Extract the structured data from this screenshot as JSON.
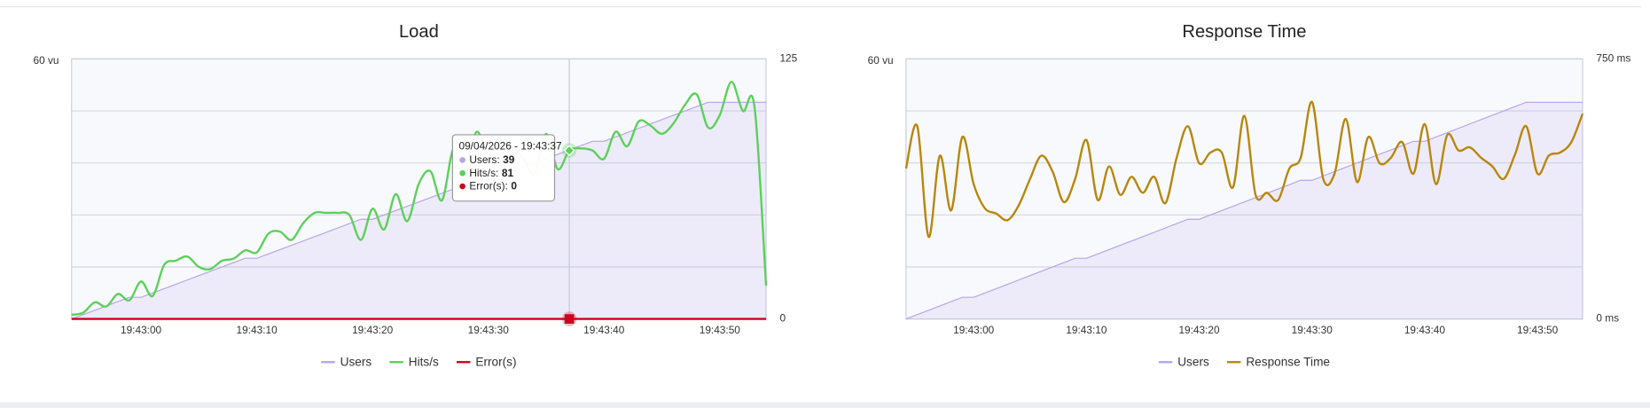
{
  "chart_data": [
    {
      "type": "line",
      "title": "Load",
      "x": [
        "19:42:54",
        "19:42:55",
        "19:42:56",
        "19:42:57",
        "19:42:58",
        "19:42:59",
        "19:43:00",
        "19:43:01",
        "19:43:02",
        "19:43:03",
        "19:43:04",
        "19:43:05",
        "19:43:06",
        "19:43:07",
        "19:43:08",
        "19:43:09",
        "19:43:10",
        "19:43:11",
        "19:43:12",
        "19:43:13",
        "19:43:14",
        "19:43:15",
        "19:43:16",
        "19:43:17",
        "19:43:18",
        "19:43:19",
        "19:43:20",
        "19:43:21",
        "19:43:22",
        "19:43:23",
        "19:43:24",
        "19:43:25",
        "19:43:26",
        "19:43:27",
        "19:43:28",
        "19:43:29",
        "19:43:30",
        "19:43:31",
        "19:43:32",
        "19:43:33",
        "19:43:34",
        "19:43:35",
        "19:43:36",
        "19:43:37",
        "19:43:38",
        "19:43:39",
        "19:43:40",
        "19:43:41",
        "19:43:42",
        "19:43:43",
        "19:43:44",
        "19:43:45",
        "19:43:46",
        "19:43:47",
        "19:43:48",
        "19:43:49",
        "19:43:50",
        "19:43:51",
        "19:43:52",
        "19:43:53",
        "19:43:54"
      ],
      "xlim": [
        "19:42:54",
        "19:43:54"
      ],
      "xticks": [
        "19:43:00",
        "19:43:10",
        "19:43:20",
        "19:43:30",
        "19:43:40",
        "19:43:50"
      ],
      "ylim": [
        0,
        60
      ],
      "yticks": [
        {
          "value": 60,
          "label": "60 vu"
        }
      ],
      "y2lim": [
        0,
        125
      ],
      "y2ticks": [
        0,
        125
      ],
      "grid": true,
      "series": [
        {
          "name": "Users",
          "color": "#b7a4ea",
          "area": true,
          "values": [
            0,
            1,
            2,
            3,
            4,
            5,
            5,
            6,
            7,
            8,
            9,
            10,
            11,
            12,
            13,
            14,
            14,
            15,
            16,
            17,
            18,
            19,
            20,
            21,
            22,
            23,
            23,
            24,
            25,
            26,
            27,
            28,
            29,
            30,
            31,
            32,
            32,
            33,
            34,
            35,
            36,
            37,
            38,
            39,
            40,
            41,
            41,
            42,
            43,
            44,
            45,
            46,
            47,
            48,
            49,
            50,
            50,
            50,
            50,
            50,
            50
          ]
        },
        {
          "name": "Hits/s",
          "color": "#5cd05a",
          "axis": "y2",
          "values": [
            2,
            3,
            8,
            6,
            12,
            9,
            18,
            11,
            26,
            28,
            30,
            25,
            24,
            28,
            29,
            33,
            32,
            41,
            42,
            38,
            46,
            51,
            51,
            51,
            50,
            38,
            53,
            43,
            60,
            47,
            65,
            71,
            57,
            82,
            72,
            90,
            77,
            70,
            82,
            77,
            70,
            89,
            72,
            81,
            82,
            81,
            77,
            90,
            83,
            95,
            93,
            89,
            94,
            103,
            108,
            92,
            98,
            114,
            100,
            102,
            16
          ]
        },
        {
          "name": "Error(s)",
          "color": "#d0021b",
          "axis": "y2",
          "values": [
            0,
            0,
            0,
            0,
            0,
            0,
            0,
            0,
            0,
            0,
            0,
            0,
            0,
            0,
            0,
            0,
            0,
            0,
            0,
            0,
            0,
            0,
            0,
            0,
            0,
            0,
            0,
            0,
            0,
            0,
            0,
            0,
            0,
            0,
            0,
            0,
            0,
            0,
            0,
            0,
            0,
            0,
            0,
            0,
            0,
            0,
            0,
            0,
            0,
            0,
            0,
            0,
            0,
            0,
            0,
            0,
            0,
            0,
            0,
            0,
            0
          ]
        }
      ],
      "tooltip": {
        "title": "09/04/2026 - 19:43:37",
        "labels": [
          "Users:",
          "Hits/s:",
          "Error(s):"
        ]
      }
    },
    {
      "type": "line",
      "title": "Response Time",
      "x": [
        "19:42:54",
        "19:42:55",
        "19:42:56",
        "19:42:57",
        "19:42:58",
        "19:42:59",
        "19:43:00",
        "19:43:01",
        "19:43:02",
        "19:43:03",
        "19:43:04",
        "19:43:05",
        "19:43:06",
        "19:43:07",
        "19:43:08",
        "19:43:09",
        "19:43:10",
        "19:43:11",
        "19:43:12",
        "19:43:13",
        "19:43:14",
        "19:43:15",
        "19:43:16",
        "19:43:17",
        "19:43:18",
        "19:43:19",
        "19:43:20",
        "19:43:21",
        "19:43:22",
        "19:43:23",
        "19:43:24",
        "19:43:25",
        "19:43:26",
        "19:43:27",
        "19:43:28",
        "19:43:29",
        "19:43:30",
        "19:43:31",
        "19:43:32",
        "19:43:33",
        "19:43:34",
        "19:43:35",
        "19:43:36",
        "19:43:37",
        "19:43:38",
        "19:43:39",
        "19:43:40",
        "19:43:41",
        "19:43:42",
        "19:43:43",
        "19:43:44",
        "19:43:45",
        "19:43:46",
        "19:43:47",
        "19:43:48",
        "19:43:49",
        "19:43:50",
        "19:43:51",
        "19:43:52",
        "19:43:53",
        "19:43:54"
      ],
      "xlim": [
        "19:42:54",
        "19:43:54"
      ],
      "xticks": [
        "19:43:00",
        "19:43:10",
        "19:43:20",
        "19:43:30",
        "19:43:40",
        "19:43:50"
      ],
      "ylim": [
        0,
        60
      ],
      "yticks": [
        {
          "value": 60,
          "label": "60 vu"
        }
      ],
      "y2lim": [
        0,
        750
      ],
      "y2ticks": [
        {
          "value": 0,
          "label": "0 ms"
        },
        {
          "value": 750,
          "label": "750 ms"
        }
      ],
      "grid": true,
      "series": [
        {
          "name": "Users",
          "color": "#b7a4ea",
          "area": true,
          "values": [
            0,
            1,
            2,
            3,
            4,
            5,
            5,
            6,
            7,
            8,
            9,
            10,
            11,
            12,
            13,
            14,
            14,
            15,
            16,
            17,
            18,
            19,
            20,
            21,
            22,
            23,
            23,
            24,
            25,
            26,
            27,
            28,
            29,
            30,
            31,
            32,
            32,
            33,
            34,
            35,
            36,
            37,
            38,
            39,
            40,
            41,
            41,
            42,
            43,
            44,
            45,
            46,
            47,
            48,
            49,
            50,
            50,
            50,
            50,
            50,
            50
          ]
        },
        {
          "name": "Response Time",
          "color": "#b8860b",
          "axis": "y2",
          "values": [
            434,
            556,
            237,
            471,
            313,
            525,
            389,
            319,
            304,
            285,
            328,
            404,
            471,
            425,
            337,
            404,
            516,
            343,
            440,
            358,
            410,
            364,
            410,
            334,
            465,
            556,
            449,
            480,
            480,
            380,
            586,
            358,
            364,
            343,
            434,
            465,
            626,
            404,
            419,
            577,
            395,
            525,
            449,
            465,
            510,
            419,
            562,
            389,
            531,
            486,
            495,
            465,
            440,
            404,
            474,
            556,
            419,
            471,
            480,
            510,
            592
          ]
        }
      ]
    }
  ]
}
